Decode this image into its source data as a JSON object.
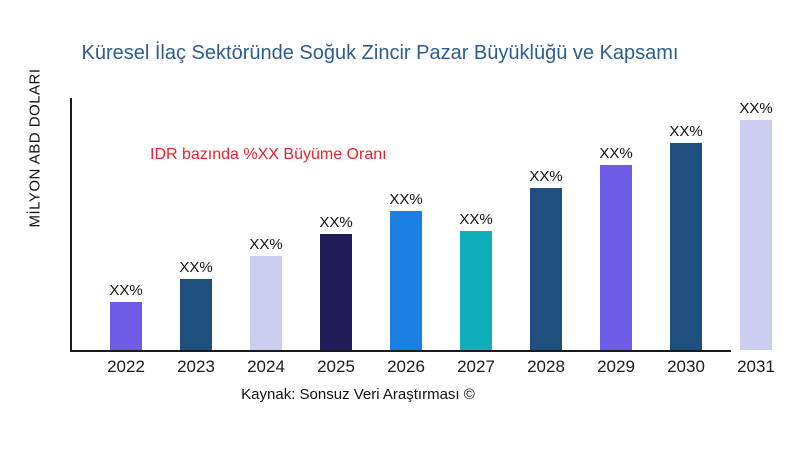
{
  "title": "Küresel İlaç Sektöründe Soğuk Zincir Pazar Büyüklüğü ve Kapsamı",
  "annotation": "IDR bazında %XX Büyüme Oranı",
  "source": "Kaynak: Sonsuz Veri Araştırması ©",
  "colors": {
    "title": "#2E5C8C",
    "annotation": "#E3242B",
    "axis": "#1a1a1a"
  },
  "chart_data": {
    "type": "bar",
    "title": "Küresel İlaç Sektöründe Soğuk Zincir Pazar Büyüklüğü ve Kapsamı",
    "categories": [
      "2022",
      "2023",
      "2024",
      "2025",
      "2026",
      "2027",
      "2028",
      "2029",
      "2030",
      "2031"
    ],
    "values": [
      19,
      28,
      37,
      46,
      55,
      47,
      64,
      73,
      82,
      91
    ],
    "value_labels": [
      "XX%",
      "XX%",
      "XX%",
      "XX%",
      "XX%",
      "XX%",
      "XX%",
      "XX%",
      "XX%",
      "XX%"
    ],
    "bar_colors": [
      "#6E5CE6",
      "#1F4F7E",
      "#CBCEF0",
      "#211C5A",
      "#1C7FE3",
      "#10ADBA",
      "#1F4F7E",
      "#6E5CE6",
      "#1F4F7E",
      "#CBCEF0"
    ],
    "xlabel": "",
    "ylabel": "MİLYON ABD DOLARI",
    "ylim": [
      0,
      100
    ],
    "grid": false,
    "legend": false,
    "annotation": "IDR bazında %XX Büyüme Oranı",
    "source": "Kaynak: Sonsuz Veri Araştırması ©"
  }
}
